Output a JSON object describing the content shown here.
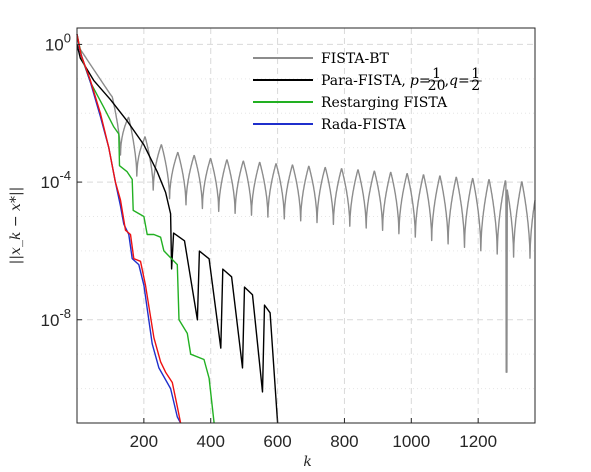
{
  "chart_data": {
    "type": "line",
    "xlabel": "k",
    "ylabel": "||x_k − x*||",
    "xlim": [
      0,
      1370
    ],
    "ylim": [
      1e-11,
      3
    ],
    "yscale": "log",
    "grid": true,
    "legend_position": "top-right",
    "x_ticks": [
      {
        "value": 200,
        "label": "200"
      },
      {
        "value": 400,
        "label": "400"
      },
      {
        "value": 600,
        "label": "600"
      },
      {
        "value": 800,
        "label": "800"
      },
      {
        "value": 1000,
        "label": "1000"
      },
      {
        "value": 1200,
        "label": "1200"
      }
    ],
    "y_ticks": [
      {
        "value": 1,
        "base": "10",
        "exp": "0"
      },
      {
        "value": 0.0001,
        "base": "10",
        "exp": "-4"
      },
      {
        "value": 1e-08,
        "base": "10",
        "exp": "-8"
      }
    ],
    "series": [
      {
        "name": "FISTA-BT",
        "color": "#8c8c8c",
        "style": "oscillating",
        "start": [
          0,
          1.0
        ],
        "envelope": [
          [
            0,
            1.0
          ],
          [
            100,
            0.035
          ],
          [
            200,
            0.0022
          ],
          [
            300,
            0.00075
          ],
          [
            400,
            0.0005
          ],
          [
            600,
            0.00035
          ],
          [
            800,
            0.00025
          ],
          [
            1000,
            0.00018
          ],
          [
            1200,
            0.00013
          ],
          [
            1370,
            0.0001
          ]
        ],
        "period": 49,
        "first_dip": 130,
        "dip_depth": [
          [
            130,
            0.04
          ],
          [
            400,
            0.03
          ],
          [
            900,
            0.02
          ],
          [
            1300,
            0.006
          ]
        ],
        "deep_dip": [
          1285,
          3e-10
        ]
      },
      {
        "name": "Para-FISTA, p = 1/20, q = 1/2",
        "color": "#000000",
        "style": "decay_then_dips",
        "points": [
          [
            0,
            1.0
          ],
          [
            10,
            0.4
          ],
          [
            50,
            0.09
          ],
          [
            100,
            0.025
          ],
          [
            150,
            0.006
          ],
          [
            200,
            0.0012
          ],
          [
            240,
            0.0002
          ],
          [
            265,
            5e-05
          ],
          [
            280,
            1.2e-05
          ]
        ],
        "dips": [
          [
            283,
            3e-07
          ],
          [
            360,
            1e-08
          ],
          [
            430,
            1.5e-09
          ],
          [
            495,
            4e-10
          ],
          [
            555,
            8e-11
          ],
          [
            600,
            1e-11
          ]
        ]
      },
      {
        "name": "Restarging FISTA",
        "color": "#22b022",
        "style": "stepped",
        "points": [
          [
            0,
            2.0
          ],
          [
            15,
            0.4
          ],
          [
            40,
            0.08
          ],
          [
            80,
            0.015
          ],
          [
            110,
            0.004
          ],
          [
            125,
            0.0025
          ],
          [
            127,
            0.0003
          ],
          [
            150,
            0.0002
          ],
          [
            165,
            0.00012
          ],
          [
            168,
            1.5e-05
          ],
          [
            200,
            1e-05
          ],
          [
            210,
            3e-06
          ],
          [
            230,
            3e-06
          ],
          [
            250,
            2.5e-06
          ],
          [
            260,
            1e-06
          ],
          [
            300,
            4e-07
          ],
          [
            305,
            1e-08
          ],
          [
            330,
            4e-09
          ],
          [
            340,
            1e-09
          ],
          [
            380,
            7e-10
          ],
          [
            395,
            2e-10
          ],
          [
            410,
            1e-11
          ]
        ]
      },
      {
        "name": "Rada-FISTA",
        "color": "#1f2fcc",
        "style": "stepped",
        "points": [
          [
            0,
            2.0
          ],
          [
            10,
            0.6
          ],
          [
            40,
            0.08
          ],
          [
            70,
            0.008
          ],
          [
            95,
            0.001
          ],
          [
            115,
            0.0001
          ],
          [
            130,
            2e-05
          ],
          [
            140,
            6e-06
          ],
          [
            155,
            3e-06
          ],
          [
            165,
            6e-07
          ],
          [
            185,
            4e-07
          ],
          [
            200,
            1e-07
          ],
          [
            225,
            2e-09
          ],
          [
            245,
            4e-10
          ],
          [
            280,
            1e-10
          ],
          [
            300,
            1.5e-11
          ],
          [
            310,
            1e-11
          ]
        ]
      },
      {
        "name": "",
        "color": "#ee1111",
        "style": "stepped",
        "points": [
          [
            0,
            2.0
          ],
          [
            12,
            0.5
          ],
          [
            40,
            0.09
          ],
          [
            70,
            0.01
          ],
          [
            95,
            0.001
          ],
          [
            115,
            0.0001
          ],
          [
            130,
            3e-05
          ],
          [
            145,
            4e-06
          ],
          [
            160,
            3e-06
          ],
          [
            170,
            6e-07
          ],
          [
            190,
            5e-07
          ],
          [
            205,
            1e-07
          ],
          [
            230,
            3e-09
          ],
          [
            250,
            6e-10
          ],
          [
            265,
            3e-10
          ],
          [
            285,
            1.5e-10
          ],
          [
            300,
            3e-11
          ],
          [
            310,
            1e-11
          ]
        ]
      }
    ]
  },
  "legend": [
    {
      "color": "#8c8c8c",
      "label": "FISTA-BT"
    },
    {
      "color": "#000000",
      "label": "Para-FISTA,",
      "math": [
        {
          "t": "p",
          "italic": true
        },
        {
          "t": " = ",
          "italic": false
        },
        {
          "frac": [
            "1",
            "20"
          ]
        },
        {
          "t": ", ",
          "italic": false
        },
        {
          "t": "q",
          "italic": true
        },
        {
          "t": " = ",
          "italic": false
        },
        {
          "frac": [
            "1",
            "2"
          ]
        }
      ]
    },
    {
      "color": "#22b022",
      "label": "Restarging FISTA"
    },
    {
      "color": "#1f2fcc",
      "label": "Rada-FISTA"
    }
  ]
}
